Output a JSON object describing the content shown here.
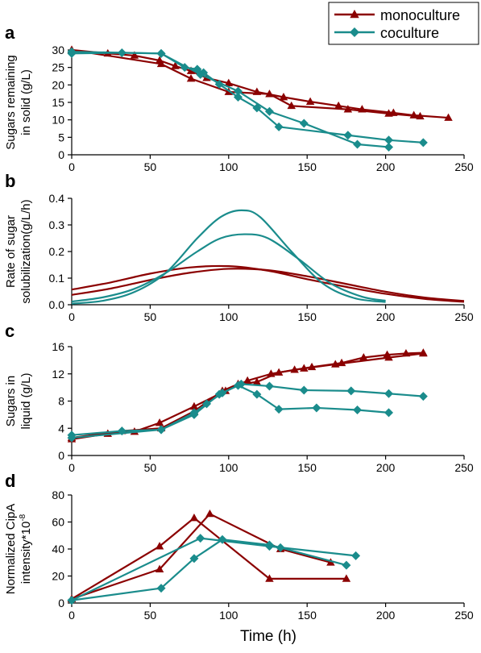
{
  "colors": {
    "monoculture": "#8B0000",
    "coculture": "#1A8C8C"
  },
  "legend": [
    {
      "name": "monoculture",
      "marker": "triangle",
      "color": "#8B0000"
    },
    {
      "name": "coculture",
      "marker": "diamond",
      "color": "#1A8C8C"
    }
  ],
  "xlabel": "Time (h)",
  "chart_data": [
    {
      "type": "line",
      "panel": "a",
      "ylabel": [
        "Sugars remaining",
        "in solid (g/L)"
      ],
      "xlim": [
        0,
        250
      ],
      "ylim": [
        0,
        30
      ],
      "xticks": [
        0,
        50,
        100,
        150,
        200,
        250
      ],
      "yticks": [
        0,
        5,
        10,
        15,
        20,
        25,
        30
      ],
      "series": [
        {
          "group": "monoculture",
          "marker": "triangle",
          "x": [
            0,
            23,
            40,
            56,
            66,
            76,
            86,
            100,
            118,
            135,
            152,
            170,
            185,
            205,
            218,
            240
          ],
          "y": [
            30,
            29,
            28.4,
            27,
            25.4,
            24,
            22,
            20.5,
            18,
            16.5,
            15.2,
            14,
            13,
            12,
            11.3,
            10.6
          ]
        },
        {
          "group": "monoculture",
          "marker": "triangle",
          "x": [
            0,
            57,
            76,
            100,
            126,
            140,
            176,
            202,
            222
          ],
          "y": [
            30,
            26,
            21.8,
            18,
            17.4,
            14,
            13,
            11.8,
            11
          ]
        },
        {
          "group": "coculture",
          "marker": "diamond",
          "x": [
            0,
            32,
            57,
            72,
            80,
            84,
            94,
            106,
            118,
            132,
            176,
            202,
            224
          ],
          "y": [
            29,
            29.2,
            29,
            25,
            24.5,
            23.5,
            20.2,
            16.5,
            13.4,
            8,
            5.6,
            4.2,
            3.5
          ]
        },
        {
          "group": "coculture",
          "marker": "diamond",
          "x": [
            0,
            57,
            82,
            106,
            126,
            148,
            182,
            202
          ],
          "y": [
            29.5,
            29,
            23,
            18.2,
            12.4,
            9,
            3,
            2.2
          ]
        }
      ]
    },
    {
      "type": "line",
      "panel": "b",
      "ylabel": [
        "Rate  of sugar",
        "solubilization(g/L/h)"
      ],
      "xlim": [
        0,
        250
      ],
      "ylim": [
        0,
        0.4
      ],
      "xticks": [
        0,
        50,
        100,
        150,
        200,
        250
      ],
      "yticks": [
        0.0,
        0.1,
        0.2,
        0.3,
        0.4
      ],
      "series": [
        {
          "group": "monoculture",
          "x": [
            0,
            25,
            50,
            75,
            100,
            125,
            150,
            175,
            200,
            225,
            250
          ],
          "y": [
            0.057,
            0.084,
            0.117,
            0.14,
            0.145,
            0.128,
            0.096,
            0.067,
            0.041,
            0.022,
            0.011
          ]
        },
        {
          "group": "monoculture",
          "x": [
            0,
            25,
            50,
            75,
            100,
            125,
            150,
            175,
            200,
            225,
            250
          ],
          "y": [
            0.037,
            0.061,
            0.093,
            0.12,
            0.135,
            0.13,
            0.107,
            0.078,
            0.049,
            0.027,
            0.014
          ]
        },
        {
          "group": "coculture",
          "x": [
            0,
            20,
            40,
            60,
            80,
            95,
            108,
            120,
            140,
            160,
            180,
            200
          ],
          "y": [
            0.004,
            0.015,
            0.048,
            0.12,
            0.25,
            0.33,
            0.355,
            0.33,
            0.2,
            0.08,
            0.025,
            0.01
          ]
        },
        {
          "group": "coculture",
          "x": [
            0,
            20,
            40,
            60,
            80,
            95,
            110,
            125,
            145,
            165,
            185,
            200
          ],
          "y": [
            0.012,
            0.028,
            0.06,
            0.12,
            0.2,
            0.25,
            0.265,
            0.25,
            0.17,
            0.08,
            0.03,
            0.015
          ]
        }
      ]
    },
    {
      "type": "line",
      "panel": "c",
      "ylabel": [
        "Sugars in",
        "liquid (g/L)"
      ],
      "xlim": [
        0,
        250
      ],
      "ylim": [
        0,
        16
      ],
      "xticks": [
        0,
        50,
        100,
        150,
        200,
        250
      ],
      "yticks": [
        0,
        4,
        8,
        12,
        16
      ],
      "series": [
        {
          "group": "monoculture",
          "marker": "triangle",
          "x": [
            0,
            23,
            40,
            56,
            78,
            98,
            112,
            127,
            142,
            153,
            172,
            186,
            201,
            213,
            224
          ],
          "y": [
            2.4,
            3.2,
            3.5,
            4.8,
            7.2,
            9.5,
            11,
            12,
            12.6,
            13,
            13.6,
            14.4,
            14.8,
            15,
            15.1
          ]
        },
        {
          "group": "monoculture",
          "marker": "triangle",
          "x": [
            0,
            32,
            57,
            78,
            96,
            106,
            118,
            132,
            148,
            168,
            202,
            224
          ],
          "y": [
            2.6,
            3.6,
            4,
            6.5,
            9.5,
            10.5,
            10.8,
            12.2,
            12.8,
            13.4,
            14.4,
            15
          ]
        },
        {
          "group": "coculture",
          "marker": "diamond",
          "x": [
            0,
            32,
            57,
            78,
            86,
            96,
            108,
            126,
            148,
            178,
            202,
            224
          ],
          "y": [
            3,
            3.6,
            3.8,
            6.3,
            7.6,
            9.2,
            10.5,
            10.2,
            9.6,
            9.5,
            9.1,
            8.7
          ]
        },
        {
          "group": "coculture",
          "marker": "diamond",
          "x": [
            0,
            57,
            78,
            94,
            106,
            118,
            132,
            156,
            182,
            202
          ],
          "y": [
            2.6,
            3.8,
            6,
            9,
            10.3,
            9,
            6.8,
            7,
            6.7,
            6.3
          ]
        }
      ]
    },
    {
      "type": "line",
      "panel": "d",
      "ylabel": [
        "Normalized CipA",
        "intensity*10"
      ],
      "ylabel_sup": "-8",
      "xlim": [
        0,
        250
      ],
      "ylim": [
        0,
        80
      ],
      "xticks": [
        0,
        50,
        100,
        150,
        200,
        250
      ],
      "yticks": [
        0,
        20,
        40,
        60,
        80
      ],
      "series": [
        {
          "group": "monoculture",
          "marker": "triangle",
          "x": [
            0,
            56,
            88,
            133,
            165
          ],
          "y": [
            3,
            25,
            66,
            40,
            30
          ]
        },
        {
          "group": "monoculture",
          "marker": "triangle",
          "x": [
            0,
            56,
            78,
            126,
            175
          ],
          "y": [
            3,
            42,
            63,
            18,
            18
          ]
        },
        {
          "group": "coculture",
          "marker": "diamond",
          "x": [
            0,
            82,
            126,
            181
          ],
          "y": [
            2,
            48,
            42,
            35
          ]
        },
        {
          "group": "coculture",
          "marker": "diamond",
          "x": [
            0,
            57,
            78,
            96,
            126,
            133,
            175
          ],
          "y": [
            2,
            11,
            33,
            47,
            43,
            41,
            28
          ]
        }
      ]
    }
  ]
}
